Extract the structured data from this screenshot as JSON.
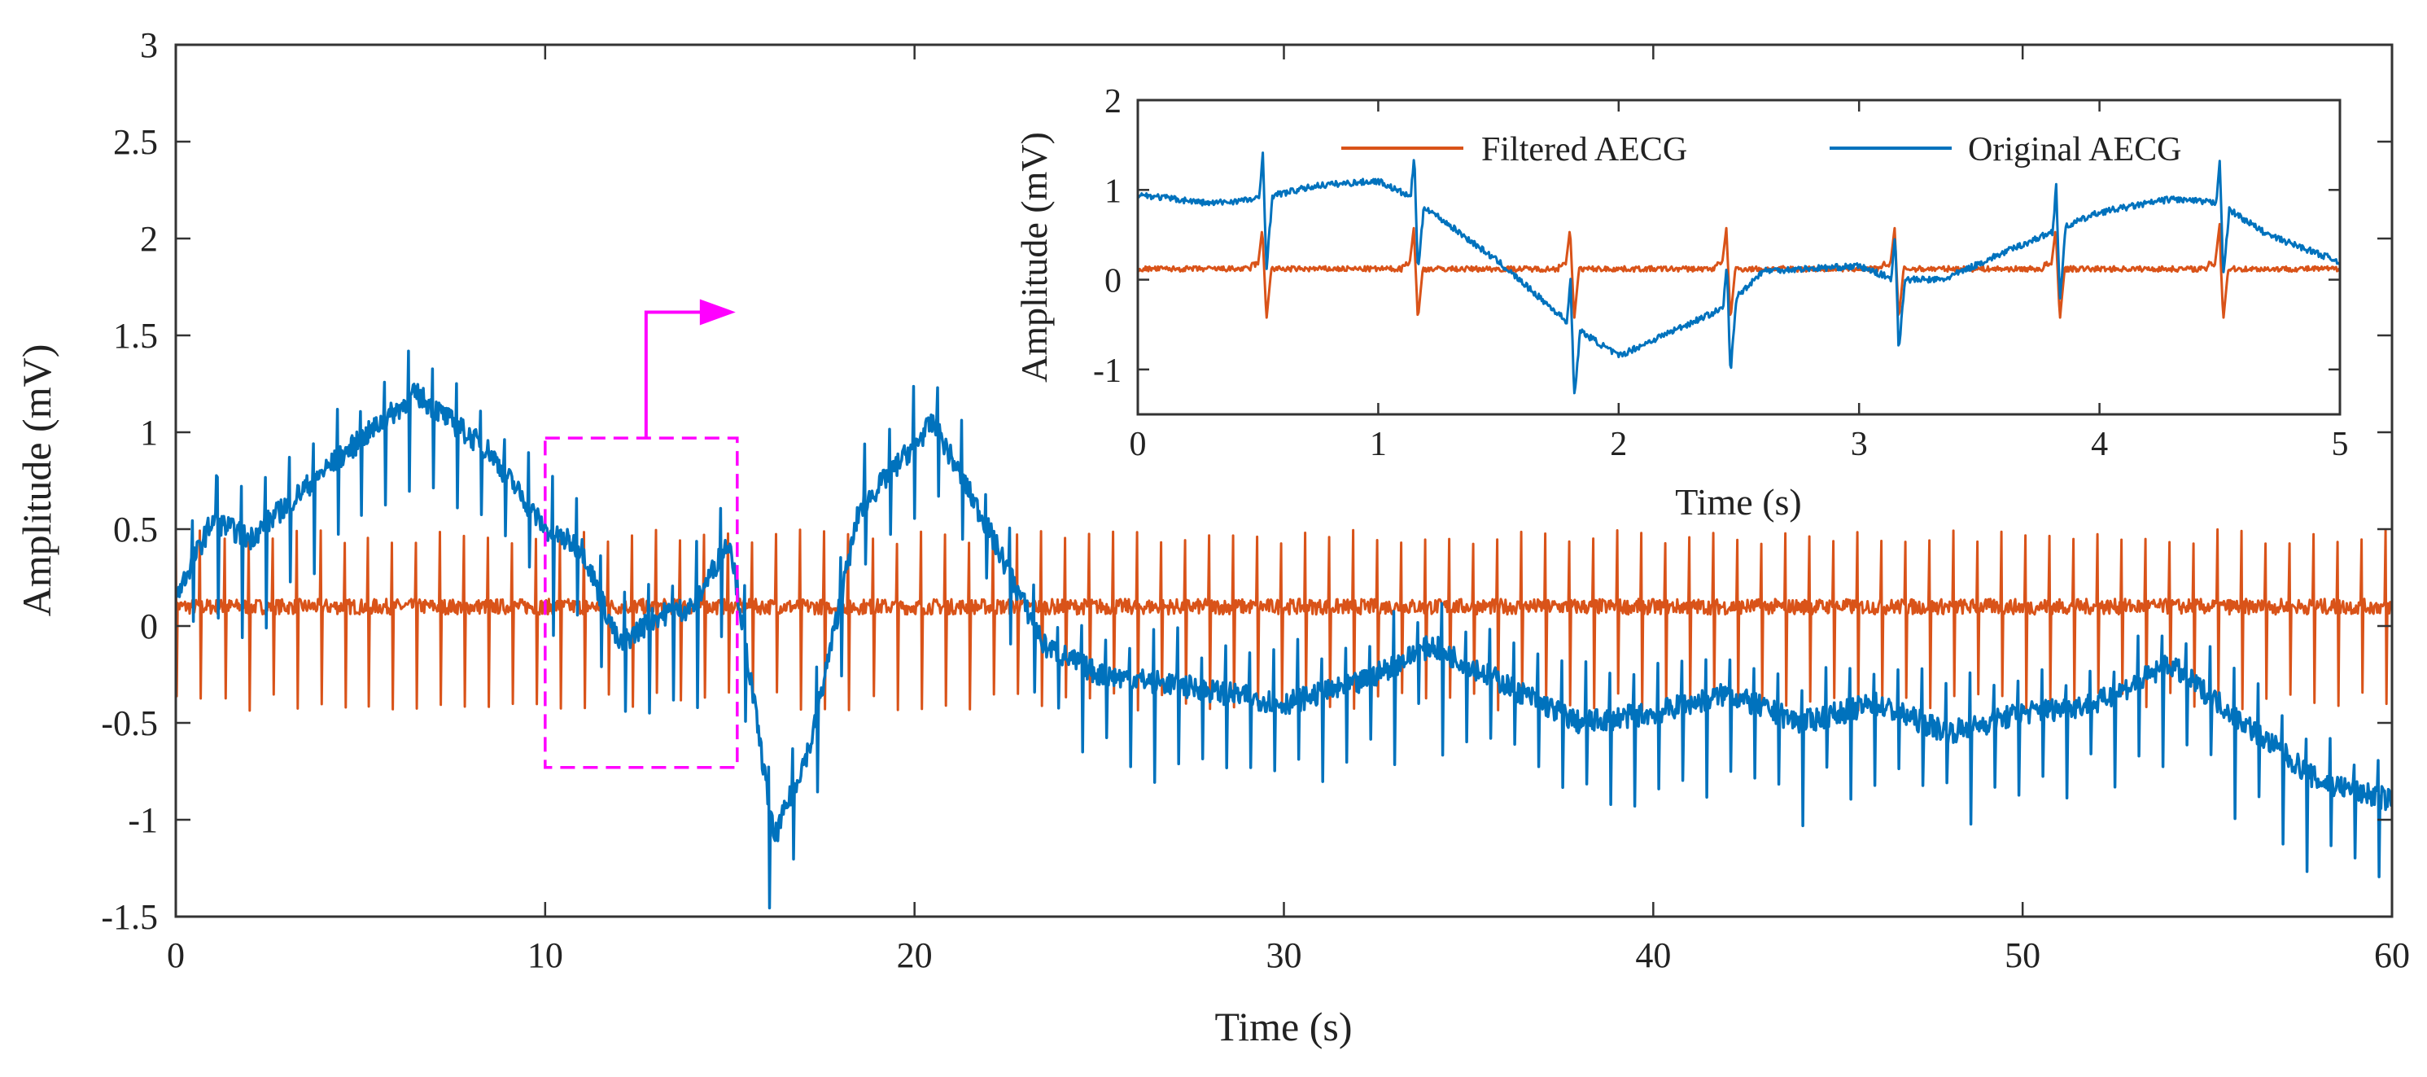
{
  "chart_data": [
    {
      "type": "line",
      "id": "main",
      "title": "",
      "xlabel": "Time (s)",
      "ylabel": "Amplitude (mV)",
      "xlim": [
        0,
        60
      ],
      "ylim": [
        -1.5,
        3
      ],
      "xticks": [
        0,
        10,
        20,
        30,
        40,
        50,
        60
      ],
      "yticks": [
        -1.5,
        -1,
        -0.5,
        0,
        0.5,
        1,
        1.5,
        2,
        2.5,
        3
      ],
      "xtick_labels": [
        "0",
        "10",
        "20",
        "30",
        "40",
        "50",
        "60"
      ],
      "ytick_labels": [
        "-1.5",
        "-1",
        "-0.5",
        "0",
        "0.5",
        "1",
        "1.5",
        "2",
        "2.5",
        "3"
      ],
      "grid": false,
      "zoom_box": {
        "x_range": [
          10,
          15.2
        ],
        "y_range": [
          -0.73,
          0.97
        ],
        "color": "#ff00ff"
      },
      "series": [
        {
          "name": "Filtered AECG",
          "color": "#d95319",
          "baseline": 0.1,
          "beat_period_s": 0.65,
          "spike_peak": 0.38,
          "spike_trough": -0.38
        },
        {
          "name": "Original AECG",
          "color": "#0072bd",
          "baseline_x": [
            0,
            1,
            2,
            4,
            6.5,
            8.5,
            10,
            11,
            12,
            13,
            14,
            15,
            16.2,
            17.2,
            18.5,
            20.5,
            22,
            23.5,
            25,
            27,
            30,
            32,
            34,
            36,
            38,
            40,
            42,
            44,
            46,
            48,
            50,
            52,
            54,
            56,
            58,
            60
          ],
          "baseline_y": [
            0.15,
            0.55,
            0.45,
            0.8,
            1.2,
            0.9,
            0.5,
            0.4,
            -0.1,
            0.05,
            0.1,
            0.45,
            -1.1,
            -0.6,
            0.6,
            1.05,
            0.5,
            -0.1,
            -0.25,
            -0.3,
            -0.4,
            -0.3,
            -0.1,
            -0.3,
            -0.5,
            -0.45,
            -0.35,
            -0.5,
            -0.4,
            -0.55,
            -0.45,
            -0.4,
            -0.2,
            -0.5,
            -0.8,
            -0.9
          ],
          "beat_period_s": 0.65,
          "spike_up": 0.22,
          "spike_down": 0.4
        }
      ]
    },
    {
      "type": "line",
      "id": "inset",
      "title": "",
      "xlabel": "Time (s)",
      "ylabel": "Amplitude (mV)",
      "xlim": [
        0,
        5
      ],
      "ylim": [
        -1.5,
        2
      ],
      "xticks": [
        0,
        1,
        2,
        3,
        4,
        5
      ],
      "yticks": [
        -1,
        0,
        1,
        2
      ],
      "xtick_labels": [
        "0",
        "1",
        "2",
        "3",
        "4",
        "5"
      ],
      "ytick_labels": [
        "-1",
        "0",
        "1",
        "2"
      ],
      "grid": false,
      "legend": {
        "location": "top",
        "orientation": "horizontal",
        "entries": [
          "Filtered AECG",
          "Original AECG"
        ]
      },
      "beat_times": [
        0.52,
        1.15,
        1.8,
        2.45,
        3.15,
        3.82,
        4.5
      ],
      "series": [
        {
          "name": "Filtered AECG",
          "color": "#d95319",
          "baseline": 0.12,
          "spike_peak": 0.45,
          "spike_trough": -0.45
        },
        {
          "name": "Original AECG",
          "color": "#0072bd",
          "baseline_x": [
            0,
            0.3,
            0.5,
            0.75,
            1.0,
            1.15,
            1.25,
            1.5,
            1.8,
            2.0,
            2.2,
            2.45,
            2.6,
            3.0,
            3.15,
            3.35,
            3.6,
            3.82,
            4.0,
            4.3,
            4.5,
            4.7,
            5.0
          ],
          "baseline_y": [
            0.95,
            0.85,
            0.9,
            1.05,
            1.1,
            0.9,
            0.7,
            0.2,
            -0.5,
            -0.85,
            -0.6,
            -0.3,
            0.1,
            0.15,
            0.0,
            0.0,
            0.3,
            0.55,
            0.75,
            0.9,
            0.85,
            0.5,
            0.2
          ],
          "spike_up": 0.5,
          "spike_down": 0.8
        }
      ]
    }
  ]
}
